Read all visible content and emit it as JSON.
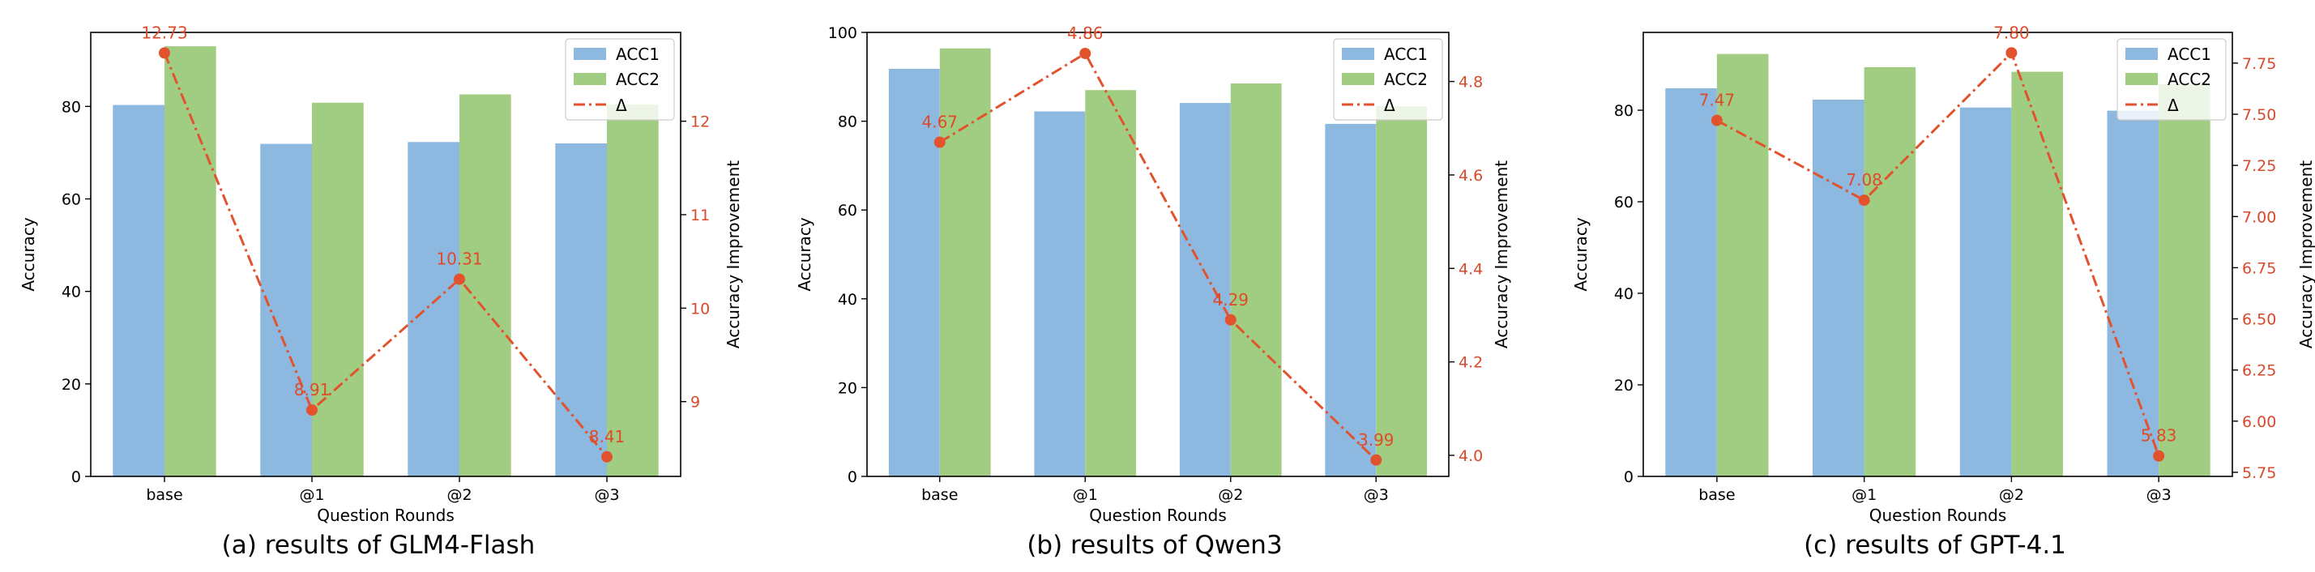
{
  "colors": {
    "acc1": "#8db8e0",
    "acc2": "#a1cd82",
    "delta": "#e2532d",
    "axis": "#000000"
  },
  "chart_data": [
    {
      "type": "bar",
      "caption": "(a) results of GLM4-Flash",
      "categories": [
        "base",
        "@1",
        "@2",
        "@3"
      ],
      "series": [
        {
          "name": "ACC1",
          "values": [
            80.3,
            71.9,
            72.3,
            72.0
          ]
        },
        {
          "name": "ACC2",
          "values": [
            93.0,
            80.8,
            82.6,
            80.4
          ]
        }
      ],
      "line": {
        "name": "Δ",
        "values": [
          12.73,
          8.91,
          10.31,
          8.41
        ],
        "labels": [
          "12.73",
          "8.91",
          "10.31",
          "8.41"
        ]
      },
      "xlabel": "Question Rounds",
      "ylabel": "Accuracy",
      "y2label": "Accuracy Improvement",
      "ylim": [
        0,
        96
      ],
      "yticks": [
        0,
        20,
        40,
        60,
        80
      ],
      "y2lim": [
        8.2,
        12.95
      ],
      "y2ticks": [
        9,
        10,
        11,
        12
      ],
      "y2ticklabels": [
        "9",
        "10",
        "11",
        "12"
      ],
      "legend": [
        "ACC1",
        "ACC2",
        "Δ"
      ]
    },
    {
      "type": "bar",
      "caption": "(b) results of Qwen3",
      "categories": [
        "base",
        "@1",
        "@2",
        "@3"
      ],
      "series": [
        {
          "name": "ACC1",
          "values": [
            91.8,
            82.2,
            84.1,
            79.4
          ]
        },
        {
          "name": "ACC2",
          "values": [
            96.4,
            87.0,
            88.5,
            83.4
          ]
        }
      ],
      "line": {
        "name": "Δ",
        "values": [
          4.67,
          4.86,
          4.29,
          3.99
        ],
        "labels": [
          "4.67",
          "4.86",
          "4.29",
          "3.99"
        ]
      },
      "xlabel": "Question Rounds",
      "ylabel": "Accuracy",
      "y2label": "Accuracy Improvement",
      "ylim": [
        0,
        100
      ],
      "yticks": [
        0,
        20,
        40,
        60,
        80,
        100
      ],
      "y2lim": [
        3.955,
        4.905
      ],
      "y2ticks": [
        4.0,
        4.2,
        4.4,
        4.6,
        4.8
      ],
      "y2ticklabels": [
        "4.0",
        "4.2",
        "4.4",
        "4.6",
        "4.8"
      ],
      "legend": [
        "ACC1",
        "ACC2",
        "Δ"
      ]
    },
    {
      "type": "bar",
      "caption": "(c) results of GPT-4.1",
      "categories": [
        "base",
        "@1",
        "@2",
        "@3"
      ],
      "series": [
        {
          "name": "ACC1",
          "values": [
            84.8,
            82.3,
            80.6,
            79.9
          ]
        },
        {
          "name": "ACC2",
          "values": [
            92.3,
            89.4,
            88.4,
            85.7
          ]
        }
      ],
      "line": {
        "name": "Δ",
        "values": [
          7.47,
          7.08,
          7.8,
          5.83
        ],
        "labels": [
          "7.47",
          "7.08",
          "7.80",
          "5.83"
        ]
      },
      "xlabel": "Question Rounds",
      "ylabel": "Accuracy",
      "y2label": "Accuracy Improvement",
      "ylim": [
        0,
        97
      ],
      "yticks": [
        0,
        20,
        40,
        60,
        80
      ],
      "y2lim": [
        5.73,
        7.9
      ],
      "y2ticks": [
        5.75,
        6.0,
        6.25,
        6.5,
        6.75,
        7.0,
        7.25,
        7.5,
        7.75
      ],
      "y2ticklabels": [
        "5.75",
        "6.00",
        "6.25",
        "6.50",
        "6.75",
        "7.00",
        "7.25",
        "7.50",
        "7.75"
      ],
      "legend": [
        "ACC1",
        "ACC2",
        "Δ"
      ]
    }
  ]
}
